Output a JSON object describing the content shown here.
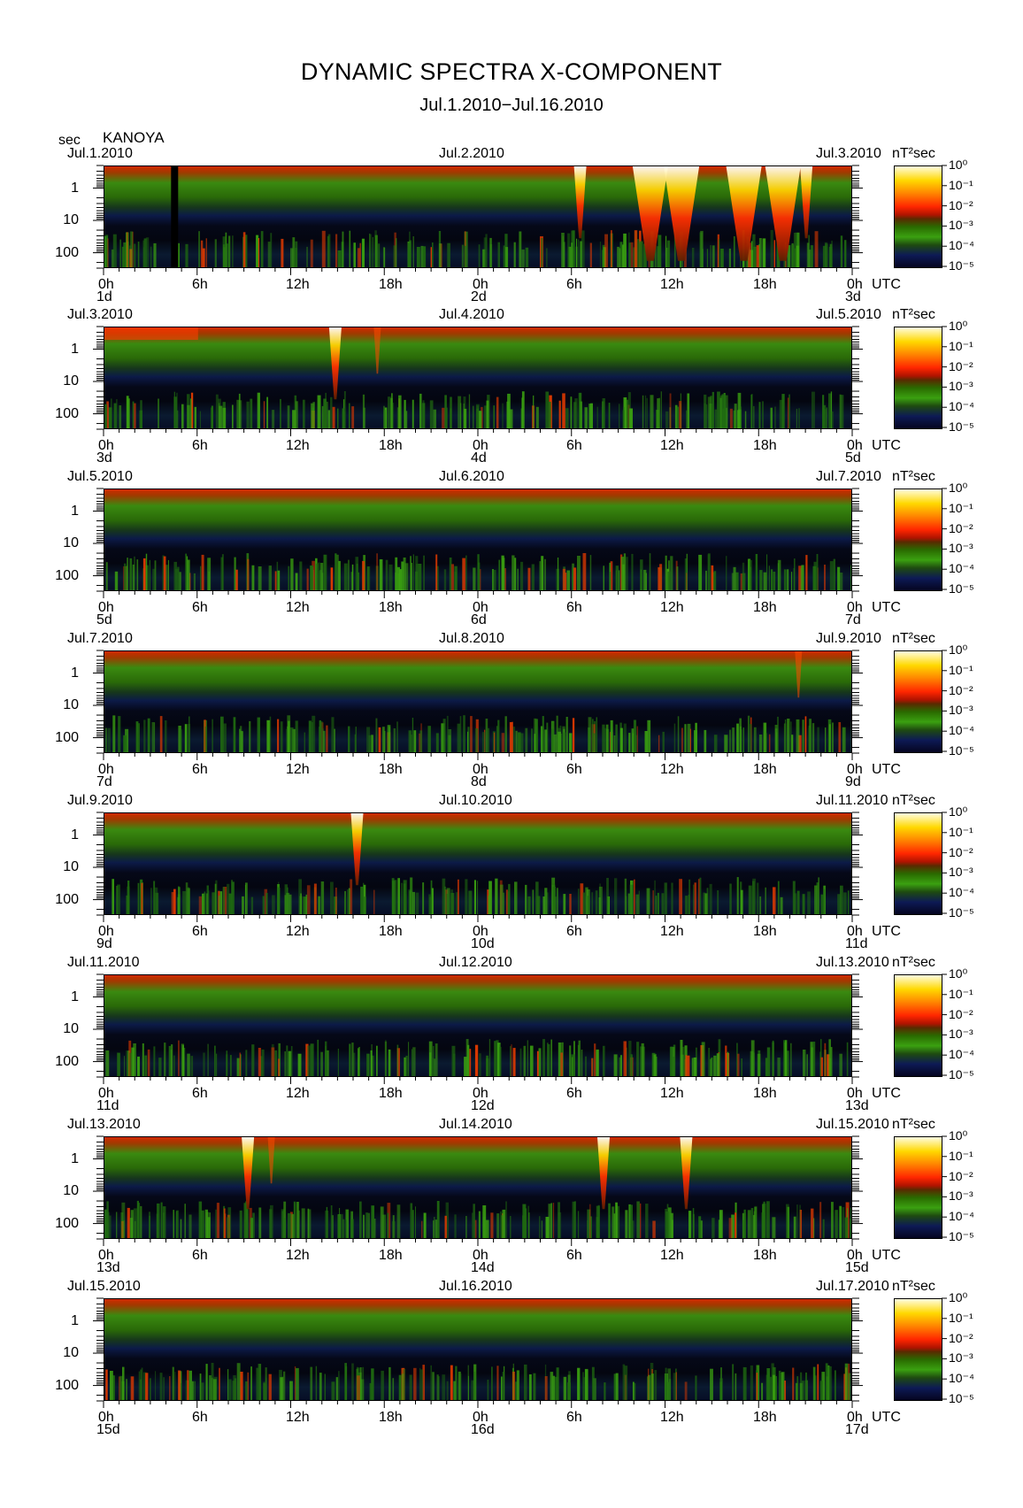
{
  "title": "DYNAMIC SPECTRA X-COMPONENT",
  "subtitle": "Jul.1.2010−Jul.16.2010",
  "station": "KANOYA",
  "y_unit": "sec",
  "colorbar_unit": "nT²sec",
  "colorbar_labels": [
    "10⁰",
    "10⁻¹",
    "10⁻²",
    "10⁻³",
    "10⁻⁴",
    "10⁻⁵"
  ],
  "time_label": "UTC",
  "hour_labels": [
    "0h",
    "6h",
    "12h",
    "18h",
    "0h",
    "6h",
    "12h",
    "18h",
    "0h"
  ],
  "colors": {
    "background": "#000000",
    "high": "#ffffff",
    "medium": "#ff2600",
    "low": "#2e8b00",
    "floor": "#0a1040"
  },
  "chart_data": {
    "type": "heatmap",
    "title": "DYNAMIC SPECTRA X-COMPONENT",
    "subtitle": "Jul.1.2010−Jul.16.2010",
    "ylabel": "sec",
    "y_axis": {
      "scale": "log",
      "ticks": [
        1,
        10,
        100
      ],
      "tick_labels": [
        "1",
        "10",
        "100"
      ],
      "range": [
        0.2,
        300
      ],
      "inverted": true
    },
    "x_axis": {
      "unit": "UTC",
      "ticks_hours": [
        0,
        6,
        12,
        18,
        24,
        30,
        36,
        42,
        48
      ]
    },
    "colorbar": {
      "scale": "log",
      "range": [
        1e-05,
        1
      ],
      "unit": "nT²sec"
    },
    "panels": [
      {
        "start": "Jul.1.2010",
        "mid": "Jul.2.2010",
        "end": "Jul.3.2010",
        "days": [
          "1d",
          "2d",
          "3d"
        ],
        "events": [
          {
            "hour": 4.5,
            "kind": "gap"
          },
          {
            "hour": 30.5,
            "kind": "burst"
          },
          {
            "hour": 35,
            "kind": "strong"
          },
          {
            "hour": 37,
            "kind": "strong"
          },
          {
            "hour": 41,
            "kind": "strong"
          },
          {
            "hour": 43.5,
            "kind": "strong"
          },
          {
            "hour": 45,
            "kind": "burst"
          }
        ]
      },
      {
        "start": "Jul.3.2010",
        "mid": "Jul.4.2010",
        "end": "Jul.5.2010",
        "days": [
          "3d",
          "4d",
          "5d"
        ],
        "events": [
          {
            "hour": 1,
            "kind": "top"
          },
          {
            "hour": 14.8,
            "kind": "burst"
          },
          {
            "hour": 17.5,
            "kind": "weak"
          }
        ]
      },
      {
        "start": "Jul.5.2010",
        "mid": "Jul.6.2010",
        "end": "Jul.7.2010",
        "days": [
          "5d",
          "6d",
          "7d"
        ],
        "events": []
      },
      {
        "start": "Jul.7.2010",
        "mid": "Jul.8.2010",
        "end": "Jul.9.2010",
        "days": [
          "7d",
          "8d",
          "9d"
        ],
        "events": [
          {
            "hour": 44.5,
            "kind": "weak"
          }
        ]
      },
      {
        "start": "Jul.9.2010",
        "mid": "Jul.10.2010",
        "end": "Jul.11.2010",
        "days": [
          "9d",
          "10d",
          "11d"
        ],
        "events": [
          {
            "hour": 16.2,
            "kind": "burst"
          }
        ]
      },
      {
        "start": "Jul.11.2010",
        "mid": "Jul.12.2010",
        "end": "Jul.13.2010",
        "days": [
          "11d",
          "12d",
          "13d"
        ],
        "events": []
      },
      {
        "start": "Jul.13.2010",
        "mid": "Jul.14.2010",
        "end": "Jul.15.2010",
        "days": [
          "13d",
          "14d",
          "15d"
        ],
        "events": [
          {
            "hour": 9.2,
            "kind": "burst"
          },
          {
            "hour": 10.7,
            "kind": "weak"
          },
          {
            "hour": 32,
            "kind": "burst"
          },
          {
            "hour": 37.3,
            "kind": "burst"
          }
        ]
      },
      {
        "start": "Jul.15.2010",
        "mid": "Jul.16.2010",
        "end": "Jul.17.2010",
        "days": [
          "15d",
          "16d",
          "17d"
        ],
        "events": []
      }
    ]
  }
}
